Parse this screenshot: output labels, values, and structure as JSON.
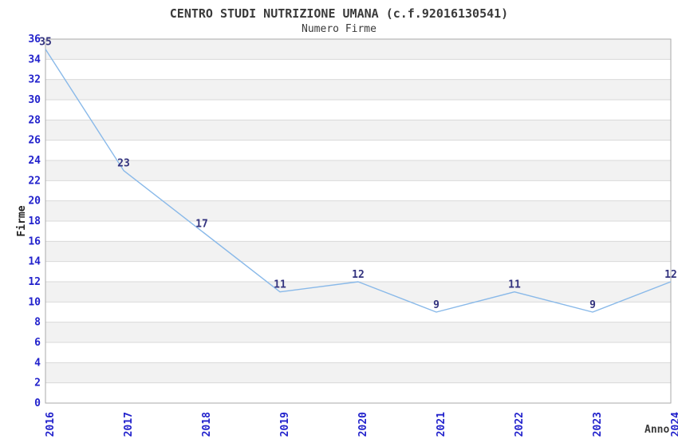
{
  "chart_data": {
    "type": "line",
    "title": "CENTRO STUDI NUTRIZIONE UMANA (c.f.92016130541)",
    "subtitle": "Numero Firme",
    "xlabel": "Anno",
    "ylabel": "Firme",
    "categories": [
      "2016",
      "2017",
      "2018",
      "2019",
      "2020",
      "2021",
      "2022",
      "2023",
      "2024"
    ],
    "values": [
      35,
      23,
      17,
      11,
      12,
      9,
      11,
      9,
      12
    ],
    "ylim": [
      0,
      36
    ],
    "ytick_step": 2,
    "grid": "horizontal-lines-with-alternating-bands",
    "legend": "none",
    "markers": "none",
    "x_tick_rotation_deg": -90,
    "colors": {
      "line": "#89b9e9",
      "tick_labels": "#2222cc",
      "value_labels": "#33337f",
      "band_gray": "#f2f2f2",
      "band_white": "#ffffff",
      "band_line": "#d9d9d9",
      "plot_border": "#aaaaaa",
      "text": "#3a3a3a",
      "background": "#ffffff"
    }
  }
}
